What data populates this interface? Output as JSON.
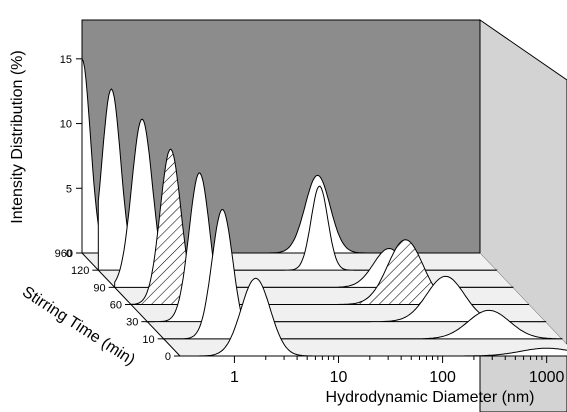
{
  "chart_data": {
    "type": "area",
    "view": "3d-waterfall",
    "ylabel": "Intensity Distribution (%)",
    "xlabel": "Hydrodynamic Diameter (nm)",
    "zlabel": "Stirring Time (min)",
    "y_ticks": [
      "0",
      "5",
      "10",
      "15"
    ],
    "ylim": [
      0,
      18
    ],
    "x_scale": "log",
    "x_ticks": [
      "1",
      "10",
      "100",
      "1000"
    ],
    "xlim": [
      0.3,
      2000
    ],
    "z_ticks": [
      "0",
      "10",
      "30",
      "60",
      "90",
      "120",
      "960"
    ],
    "background_wall_color": "#8c8c8c",
    "side_wall_color": "#d3d3d3",
    "floor_color": "#f0f0f0",
    "hatched_series": "60",
    "series": [
      {
        "name": "0",
        "peaks": [
          {
            "center": 1.6,
            "width": 0.14,
            "height": 6.0
          },
          {
            "center": 1000,
            "width": 0.25,
            "height": 0.6
          }
        ]
      },
      {
        "name": "10",
        "peaks": [
          {
            "center": 1.1,
            "width": 0.1,
            "height": 10.0
          },
          {
            "center": 400,
            "width": 0.2,
            "height": 2.2
          }
        ]
      },
      {
        "name": "30",
        "peaks": [
          {
            "center": 0.95,
            "width": 0.1,
            "height": 11.5
          },
          {
            "center": 220,
            "width": 0.18,
            "height": 3.5
          }
        ]
      },
      {
        "name": "60",
        "peaks": [
          {
            "center": 0.72,
            "width": 0.1,
            "height": 12.0
          },
          {
            "center": 130,
            "width": 0.17,
            "height": 5.0
          }
        ]
      },
      {
        "name": "90",
        "peaks": [
          {
            "center": 0.55,
            "width": 0.1,
            "height": 13.0
          },
          {
            "center": 130,
            "width": 0.15,
            "height": 3.0
          }
        ]
      },
      {
        "name": "120",
        "peaks": [
          {
            "center": 0.4,
            "width": 0.09,
            "height": 14.0
          },
          {
            "center": 40,
            "width": 0.08,
            "height": 6.5
          }
        ]
      },
      {
        "name": "960",
        "peaks": [
          {
            "center": 0.3,
            "width": 0.08,
            "height": 15.0
          },
          {
            "center": 55,
            "width": 0.12,
            "height": 6.0
          }
        ]
      }
    ]
  }
}
